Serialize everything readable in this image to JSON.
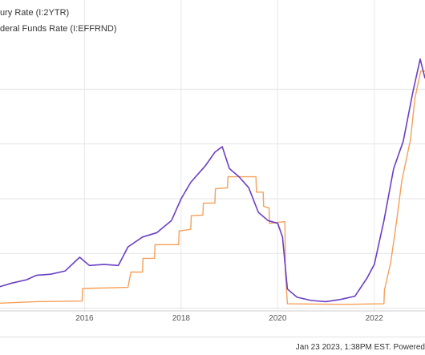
{
  "legend": [
    {
      "text": "ury Rate (I:2YTR)",
      "color": "#6a3fc5"
    },
    {
      "text": "deral Funds Rate (I:EFFRND)",
      "color": "#f5a05a"
    }
  ],
  "footer": {
    "text": "Jan 23 2023, 1:38PM EST. Powered"
  },
  "chart_data": {
    "type": "line",
    "title": "",
    "xlabel": "",
    "ylabel": "",
    "x_ticks": [
      "2016",
      "2018",
      "2020",
      "2022"
    ],
    "x_range": [
      2014.2,
      2023.05
    ],
    "y_range": [
      -0.05,
      5.0
    ],
    "grid": true,
    "legend_position": "top-left",
    "series": [
      {
        "name": "ury Rate (I:2YTR)",
        "color": "#6a3fc5",
        "points": [
          [
            2014.2,
            0.38
          ],
          [
            2014.5,
            0.46
          ],
          [
            2014.8,
            0.52
          ],
          [
            2015.0,
            0.6
          ],
          [
            2015.3,
            0.62
          ],
          [
            2015.6,
            0.68
          ],
          [
            2015.9,
            0.93
          ],
          [
            2016.1,
            0.78
          ],
          [
            2016.4,
            0.8
          ],
          [
            2016.7,
            0.78
          ],
          [
            2016.9,
            1.12
          ],
          [
            2017.2,
            1.3
          ],
          [
            2017.5,
            1.38
          ],
          [
            2017.8,
            1.6
          ],
          [
            2018.0,
            2.0
          ],
          [
            2018.2,
            2.3
          ],
          [
            2018.5,
            2.6
          ],
          [
            2018.7,
            2.85
          ],
          [
            2018.85,
            2.95
          ],
          [
            2019.0,
            2.55
          ],
          [
            2019.2,
            2.4
          ],
          [
            2019.4,
            2.2
          ],
          [
            2019.6,
            1.75
          ],
          [
            2019.8,
            1.6
          ],
          [
            2020.0,
            1.55
          ],
          [
            2020.1,
            1.3
          ],
          [
            2020.2,
            0.35
          ],
          [
            2020.4,
            0.2
          ],
          [
            2020.7,
            0.14
          ],
          [
            2021.0,
            0.12
          ],
          [
            2021.3,
            0.16
          ],
          [
            2021.6,
            0.22
          ],
          [
            2021.85,
            0.55
          ],
          [
            2022.0,
            0.8
          ],
          [
            2022.2,
            1.6
          ],
          [
            2022.4,
            2.55
          ],
          [
            2022.6,
            3.05
          ],
          [
            2022.8,
            3.95
          ],
          [
            2022.95,
            4.55
          ],
          [
            2023.05,
            4.2
          ]
        ]
      },
      {
        "name": "deral Funds Rate (I:EFFRND)",
        "color": "#f5a05a",
        "points": [
          [
            2014.2,
            0.09
          ],
          [
            2015.0,
            0.12
          ],
          [
            2015.95,
            0.13
          ],
          [
            2015.96,
            0.36
          ],
          [
            2016.9,
            0.38
          ],
          [
            2016.96,
            0.66
          ],
          [
            2017.2,
            0.66
          ],
          [
            2017.21,
            0.91
          ],
          [
            2017.45,
            0.91
          ],
          [
            2017.46,
            1.16
          ],
          [
            2017.95,
            1.16
          ],
          [
            2017.96,
            1.41
          ],
          [
            2018.2,
            1.44
          ],
          [
            2018.21,
            1.69
          ],
          [
            2018.45,
            1.7
          ],
          [
            2018.46,
            1.92
          ],
          [
            2018.7,
            1.92
          ],
          [
            2018.71,
            2.18
          ],
          [
            2018.96,
            2.2
          ],
          [
            2018.97,
            2.4
          ],
          [
            2019.55,
            2.4
          ],
          [
            2019.56,
            2.12
          ],
          [
            2019.7,
            2.12
          ],
          [
            2019.71,
            1.86
          ],
          [
            2019.82,
            1.83
          ],
          [
            2019.83,
            1.55
          ],
          [
            2020.15,
            1.58
          ],
          [
            2020.16,
            0.65
          ],
          [
            2020.2,
            0.08
          ],
          [
            2021.4,
            0.07
          ],
          [
            2022.2,
            0.08
          ],
          [
            2022.21,
            0.33
          ],
          [
            2022.34,
            0.83
          ],
          [
            2022.46,
            1.58
          ],
          [
            2022.57,
            2.33
          ],
          [
            2022.75,
            3.08
          ],
          [
            2022.84,
            3.83
          ],
          [
            2022.96,
            4.33
          ],
          [
            2023.05,
            4.33
          ]
        ]
      }
    ]
  }
}
